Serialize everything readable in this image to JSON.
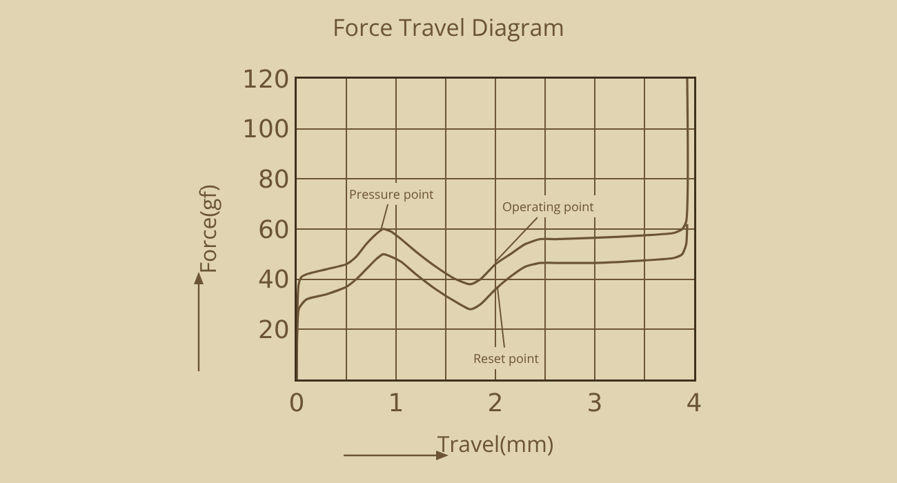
{
  "chart_data": {
    "type": "line",
    "title": "Force Travel Diagram",
    "xlabel": "Travel(mm)",
    "ylabel": "Force(gf)",
    "series": [
      {
        "color": "#6b5535",
        "x": [
          0,
          0.02,
          0.05,
          0.1,
          0.3,
          0.5,
          0.6,
          0.7,
          0.8,
          0.87,
          0.95,
          1.05,
          1.2,
          1.4,
          1.6,
          1.75,
          1.85,
          2.0,
          2.15,
          2.3,
          2.45,
          2.6,
          3.0,
          3.5,
          3.8,
          3.88,
          3.92,
          3.93
        ],
        "values": [
          0,
          38,
          41,
          42,
          44,
          46,
          49,
          54,
          58,
          60,
          59,
          56,
          51,
          45,
          40,
          38,
          40,
          46,
          50,
          54,
          56,
          56,
          56.5,
          57.5,
          58.5,
          60,
          63,
          120
        ]
      },
      {
        "color": "#6b5535",
        "x": [
          0,
          0.02,
          0.05,
          0.1,
          0.3,
          0.5,
          0.6,
          0.7,
          0.8,
          0.87,
          0.95,
          1.05,
          1.2,
          1.4,
          1.6,
          1.75,
          1.85,
          2.0,
          2.15,
          2.3,
          2.45,
          2.6,
          3.0,
          3.5,
          3.8,
          3.88,
          3.92,
          3.93
        ],
        "values": [
          0,
          28,
          30,
          32,
          34,
          37,
          40,
          44,
          48,
          50,
          49,
          47,
          42,
          36,
          31,
          28,
          30,
          36,
          41,
          45,
          46.5,
          46.5,
          46.5,
          47.5,
          48.5,
          50,
          54,
          62
        ]
      }
    ],
    "xlim": [
      0,
      4
    ],
    "xticks": [
      0,
      {
        "value": 0.5,
        "label": null
      },
      1,
      {
        "value": 1.5,
        "label": null
      },
      2,
      {
        "value": 2.5,
        "label": null
      },
      3,
      {
        "value": 3.5,
        "label": null
      },
      4
    ],
    "ylim": [
      0,
      120
    ],
    "yticks": [
      {
        "value": 0,
        "label": null
      },
      20,
      40,
      60,
      80,
      100,
      120
    ],
    "grid": true,
    "marker": "none",
    "line_style": "solid",
    "annotations": [
      {
        "text": "Pressure point",
        "x": 0.85,
        "y": 60
      },
      {
        "text": "Operating point",
        "x": 2.0,
        "y": 47
      },
      {
        "text": "Reset point",
        "x": 2.02,
        "y": 37
      }
    ]
  }
}
